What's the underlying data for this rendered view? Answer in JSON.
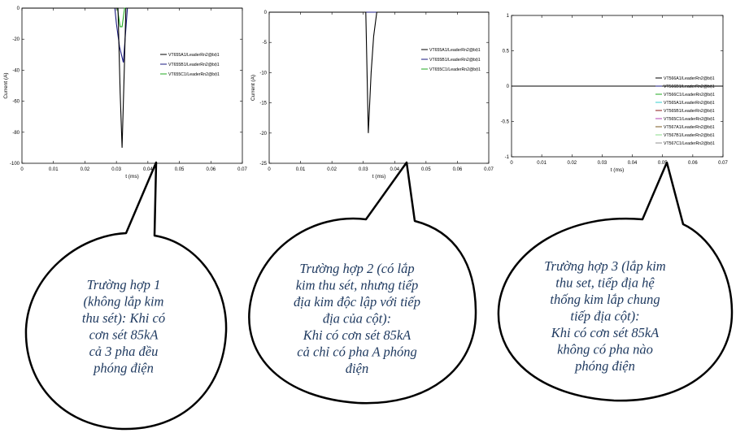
{
  "chart_data": [
    {
      "type": "line",
      "xlabel": "t (ms)",
      "ylabel": "Current (A)",
      "xlim": [
        0,
        0.07
      ],
      "ylim": [
        -100,
        0
      ],
      "xticks": [
        0,
        0.01,
        0.02,
        0.03,
        0.04,
        0.05,
        0.06,
        0.07
      ],
      "xtick_labels": [
        "0",
        "0.01",
        "0.02",
        "0.03",
        "0.04",
        "0.05",
        "0.06",
        "0.07"
      ],
      "yticks": [
        0,
        -20,
        -40,
        -60,
        -80,
        -100
      ],
      "ytick_labels": [
        "0",
        "-20",
        "-40",
        "-60",
        "-80",
        "-100"
      ],
      "series": [
        {
          "name": "VT655A1/LeaderRn2@bộ1",
          "color": "#000000",
          "x": [
            0,
            0.0305,
            0.0312,
            0.0318,
            0.0325,
            0.033,
            0.07
          ],
          "y": [
            0,
            0,
            -55,
            -90,
            -40,
            0,
            0
          ]
        },
        {
          "name": "VT655B1/LeaderRn2@bộ1",
          "color": "#1a1a80",
          "x": [
            0,
            0.0295,
            0.03,
            0.031,
            0.0322,
            0.0335,
            0.07
          ],
          "y": [
            0,
            0,
            -10,
            -25,
            -35,
            0,
            0
          ]
        },
        {
          "name": "VT655C1/LeaderRn2@bộ1",
          "color": "#22aa22",
          "x": [
            0,
            0.0303,
            0.0312,
            0.0318,
            0.0326,
            0.07
          ],
          "y": [
            0,
            0,
            -12,
            -12,
            0,
            0
          ]
        }
      ]
    },
    {
      "type": "line",
      "xlabel": "t (ms)",
      "ylabel": "Current (A)",
      "xlim": [
        0,
        0.07
      ],
      "ylim": [
        -25,
        0
      ],
      "xticks": [
        0,
        0.01,
        0.02,
        0.03,
        0.04,
        0.05,
        0.06,
        0.07
      ],
      "xtick_labels": [
        "0",
        "0.01",
        "0.02",
        "0.03",
        "0.04",
        "0.05",
        "0.06",
        "0.07"
      ],
      "yticks": [
        0,
        -5,
        -10,
        -15,
        -20,
        -25
      ],
      "ytick_labels": [
        "0",
        "-5",
        "-10",
        "-15",
        "-20",
        "-25"
      ],
      "series": [
        {
          "name": "VT655A1/LeaderRn2@bộ1",
          "color": "#000000",
          "x": [
            0,
            0.0308,
            0.0316,
            0.0325,
            0.0333,
            0.0343,
            0.07
          ],
          "y": [
            0,
            0,
            -20,
            -10,
            -4,
            0,
            0
          ]
        },
        {
          "name": "VT655B1/LeaderRn2@bộ1",
          "color": "#1a1a80",
          "x": [
            0,
            0.07
          ],
          "y": [
            0,
            0
          ]
        },
        {
          "name": "VT655C1/LeaderRn2@bộ1",
          "color": "#22aa22",
          "x": [
            0,
            0.07
          ],
          "y": [
            0,
            0
          ]
        }
      ]
    },
    {
      "type": "line",
      "xlabel": "t (ms)",
      "ylabel": "",
      "xlim": [
        0,
        0.07
      ],
      "ylim": [
        -1,
        1
      ],
      "xticks": [
        0,
        0.01,
        0.02,
        0.03,
        0.04,
        0.05,
        0.06,
        0.07
      ],
      "xtick_labels": [
        "0",
        "0.01",
        "0.02",
        "0.03",
        "0.04",
        "0.05",
        "0.06",
        "0.07"
      ],
      "yticks": [
        1,
        0.5,
        0,
        -0.5,
        -1
      ],
      "ytick_labels": [
        "1",
        "0.5",
        "0",
        "-0.5",
        "-1"
      ],
      "series": [
        {
          "name": "VT566A1/LeaderRn2@bộ1",
          "color": "#000000",
          "x": [
            0,
            0.07
          ],
          "y": [
            0,
            0
          ]
        },
        {
          "name": "VT566B1/LeaderRn2@bộ1",
          "color": "#1a1a80",
          "x": [
            0,
            0.07
          ],
          "y": [
            0,
            0
          ]
        },
        {
          "name": "VT566C1/LeaderRn2@bộ1",
          "color": "#22aa22",
          "x": [
            0,
            0.07
          ],
          "y": [
            0,
            0
          ]
        },
        {
          "name": "VT565A1/LeaderRn2@bộ1",
          "color": "#33cccc",
          "x": [
            0,
            0.07
          ],
          "y": [
            0,
            0
          ]
        },
        {
          "name": "VT565B1/LeaderRn2@bộ1",
          "color": "#8b1a1a",
          "x": [
            0,
            0.07
          ],
          "y": [
            0,
            0
          ]
        },
        {
          "name": "VT565C1/LeaderRn2@bộ1",
          "color": "#b040b0",
          "x": [
            0,
            0.07
          ],
          "y": [
            0,
            0
          ]
        },
        {
          "name": "VT567A1/LeaderRn2@bộ1",
          "color": "#7a5a20",
          "x": [
            0,
            0.07
          ],
          "y": [
            0,
            0
          ]
        },
        {
          "name": "VT567B1/LeaderRn2@bộ1",
          "color": "#88dd88",
          "x": [
            0,
            0.07
          ],
          "y": [
            0,
            0
          ]
        },
        {
          "name": "VT567C1/LeaderRn2@bộ1",
          "color": "#909090",
          "x": [
            0,
            0.07
          ],
          "y": [
            0,
            0
          ]
        }
      ]
    }
  ],
  "callouts": [
    {
      "lines": [
        "Trường hợp 1",
        "(không lắp kim",
        "thu sét): Khi có",
        "cơn sét 85kA",
        "cả 3 pha đều",
        "phóng điện"
      ]
    },
    {
      "lines": [
        "Trường hợp 2 (có lắp",
        "kim thu sét, nhưng tiếp",
        "địa kim độc lập với tiếp",
        "địa của cột):",
        "Khi có cơn sét 85kA",
        "cả chỉ có pha A phóng",
        "điện"
      ]
    },
    {
      "lines": [
        "Trường hợp 3 (lắp kim",
        "thu set, tiếp địa hệ",
        "thống kim lắp chung",
        "tiếp địa cột):",
        "Khi có cơn sét 85kA",
        "không có pha nào",
        "phóng điện"
      ]
    }
  ]
}
